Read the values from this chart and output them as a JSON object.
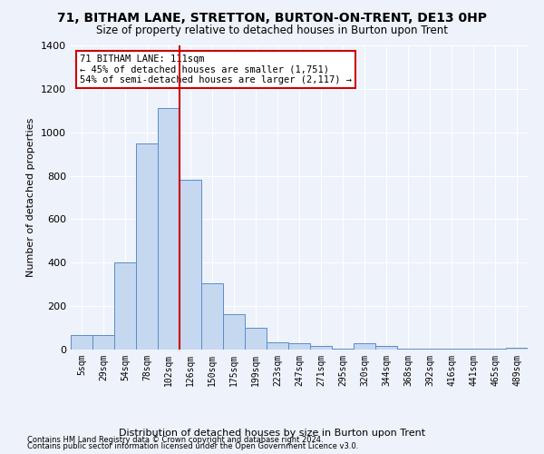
{
  "title": "71, BITHAM LANE, STRETTON, BURTON-ON-TRENT, DE13 0HP",
  "subtitle": "Size of property relative to detached houses in Burton upon Trent",
  "xlabel": "Distribution of detached houses by size in Burton upon Trent",
  "ylabel": "Number of detached properties",
  "footnote1": "Contains HM Land Registry data © Crown copyright and database right 2024.",
  "footnote2": "Contains public sector information licensed under the Open Government Licence v3.0.",
  "bar_labels": [
    "5sqm",
    "29sqm",
    "54sqm",
    "78sqm",
    "102sqm",
    "126sqm",
    "150sqm",
    "175sqm",
    "199sqm",
    "223sqm",
    "247sqm",
    "271sqm",
    "295sqm",
    "320sqm",
    "344sqm",
    "368sqm",
    "392sqm",
    "416sqm",
    "441sqm",
    "465sqm",
    "489sqm"
  ],
  "bar_values": [
    65,
    65,
    400,
    950,
    1110,
    780,
    305,
    165,
    100,
    35,
    30,
    15,
    5,
    30,
    15,
    5,
    3,
    3,
    3,
    3,
    10
  ],
  "bar_color": "#c5d8f0",
  "bar_edge_color": "#5b8dc8",
  "vline_color": "#cc0000",
  "annotation_text": "71 BITHAM LANE: 111sqm\n← 45% of detached houses are smaller (1,751)\n54% of semi-detached houses are larger (2,117) →",
  "annotation_box_color": "#ffffff",
  "annotation_box_edge_color": "#cc0000",
  "ylim": [
    0,
    1400
  ],
  "background_color": "#eef2fa",
  "plot_background": "#eef2fa",
  "yticks": [
    0,
    200,
    400,
    600,
    800,
    1000,
    1200,
    1400
  ]
}
